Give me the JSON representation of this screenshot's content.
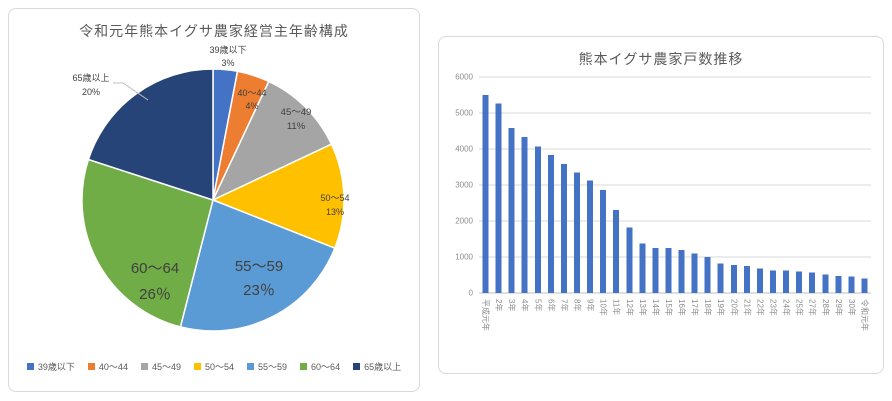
{
  "window": {
    "background": "#FFFFFF"
  },
  "colors": {
    "card_border": "#D9D9D9",
    "title_text": "#595959",
    "axis_text": "#8C8C8C",
    "grid_line": "#D9D9D9",
    "axis_line": "#BFBFBF",
    "pie_label_text": "#404040",
    "leader_line": "#BFBFBF"
  },
  "chart_data": [
    {
      "type": "pie",
      "title": "令和元年熊本イグサ農家経営主年齢構成",
      "legend_position": "bottom",
      "slices": [
        {
          "label": "39歳以下",
          "value": 3,
          "pct_label": "3%",
          "color": "#4472C4",
          "label_position": "outside"
        },
        {
          "label": "40～44",
          "value": 4,
          "pct_label": "4%",
          "color": "#ED7D31",
          "label_position": "inside"
        },
        {
          "label": "45～49",
          "value": 11,
          "pct_label": "11%",
          "color": "#A5A5A5",
          "label_position": "inside"
        },
        {
          "label": "50～54",
          "value": 13,
          "pct_label": "13%",
          "color": "#FFC000",
          "label_position": "inside"
        },
        {
          "label": "55～59",
          "value": 23,
          "pct_label": "23％",
          "color": "#5B9BD5",
          "label_position": "inside-large"
        },
        {
          "label": "60～64",
          "value": 26,
          "pct_label": "26％",
          "color": "#70AD47",
          "label_position": "inside-large"
        },
        {
          "label": "65歳以上",
          "value": 20,
          "pct_label": "20%",
          "color": "#264478",
          "label_position": "outside-line"
        }
      ]
    },
    {
      "type": "bar",
      "title": "熊本イグサ農家戸数推移",
      "categories": [
        "平成元年",
        "2年",
        "3年",
        "4年",
        "5年",
        "6年",
        "7年",
        "8年",
        "9年",
        "10年",
        "11年",
        "12年",
        "13年",
        "14年",
        "15年",
        "16年",
        "17年",
        "18年",
        "19年",
        "20年",
        "21年",
        "22年",
        "23年",
        "24年",
        "25年",
        "27年",
        "28年",
        "29年",
        "30年",
        "令和元年"
      ],
      "values": [
        5500,
        5270,
        4580,
        4330,
        4070,
        3830,
        3590,
        3350,
        3120,
        2860,
        2300,
        1820,
        1370,
        1250,
        1250,
        1190,
        1100,
        1000,
        820,
        780,
        750,
        680,
        630,
        630,
        600,
        570,
        520,
        470,
        460,
        400
      ],
      "ylim": [
        0,
        6000
      ],
      "yticks": [
        0,
        1000,
        2000,
        3000,
        4000,
        5000,
        6000
      ],
      "bar_color": "#4472C4",
      "grid": true,
      "x_labels_rotated": true
    }
  ]
}
